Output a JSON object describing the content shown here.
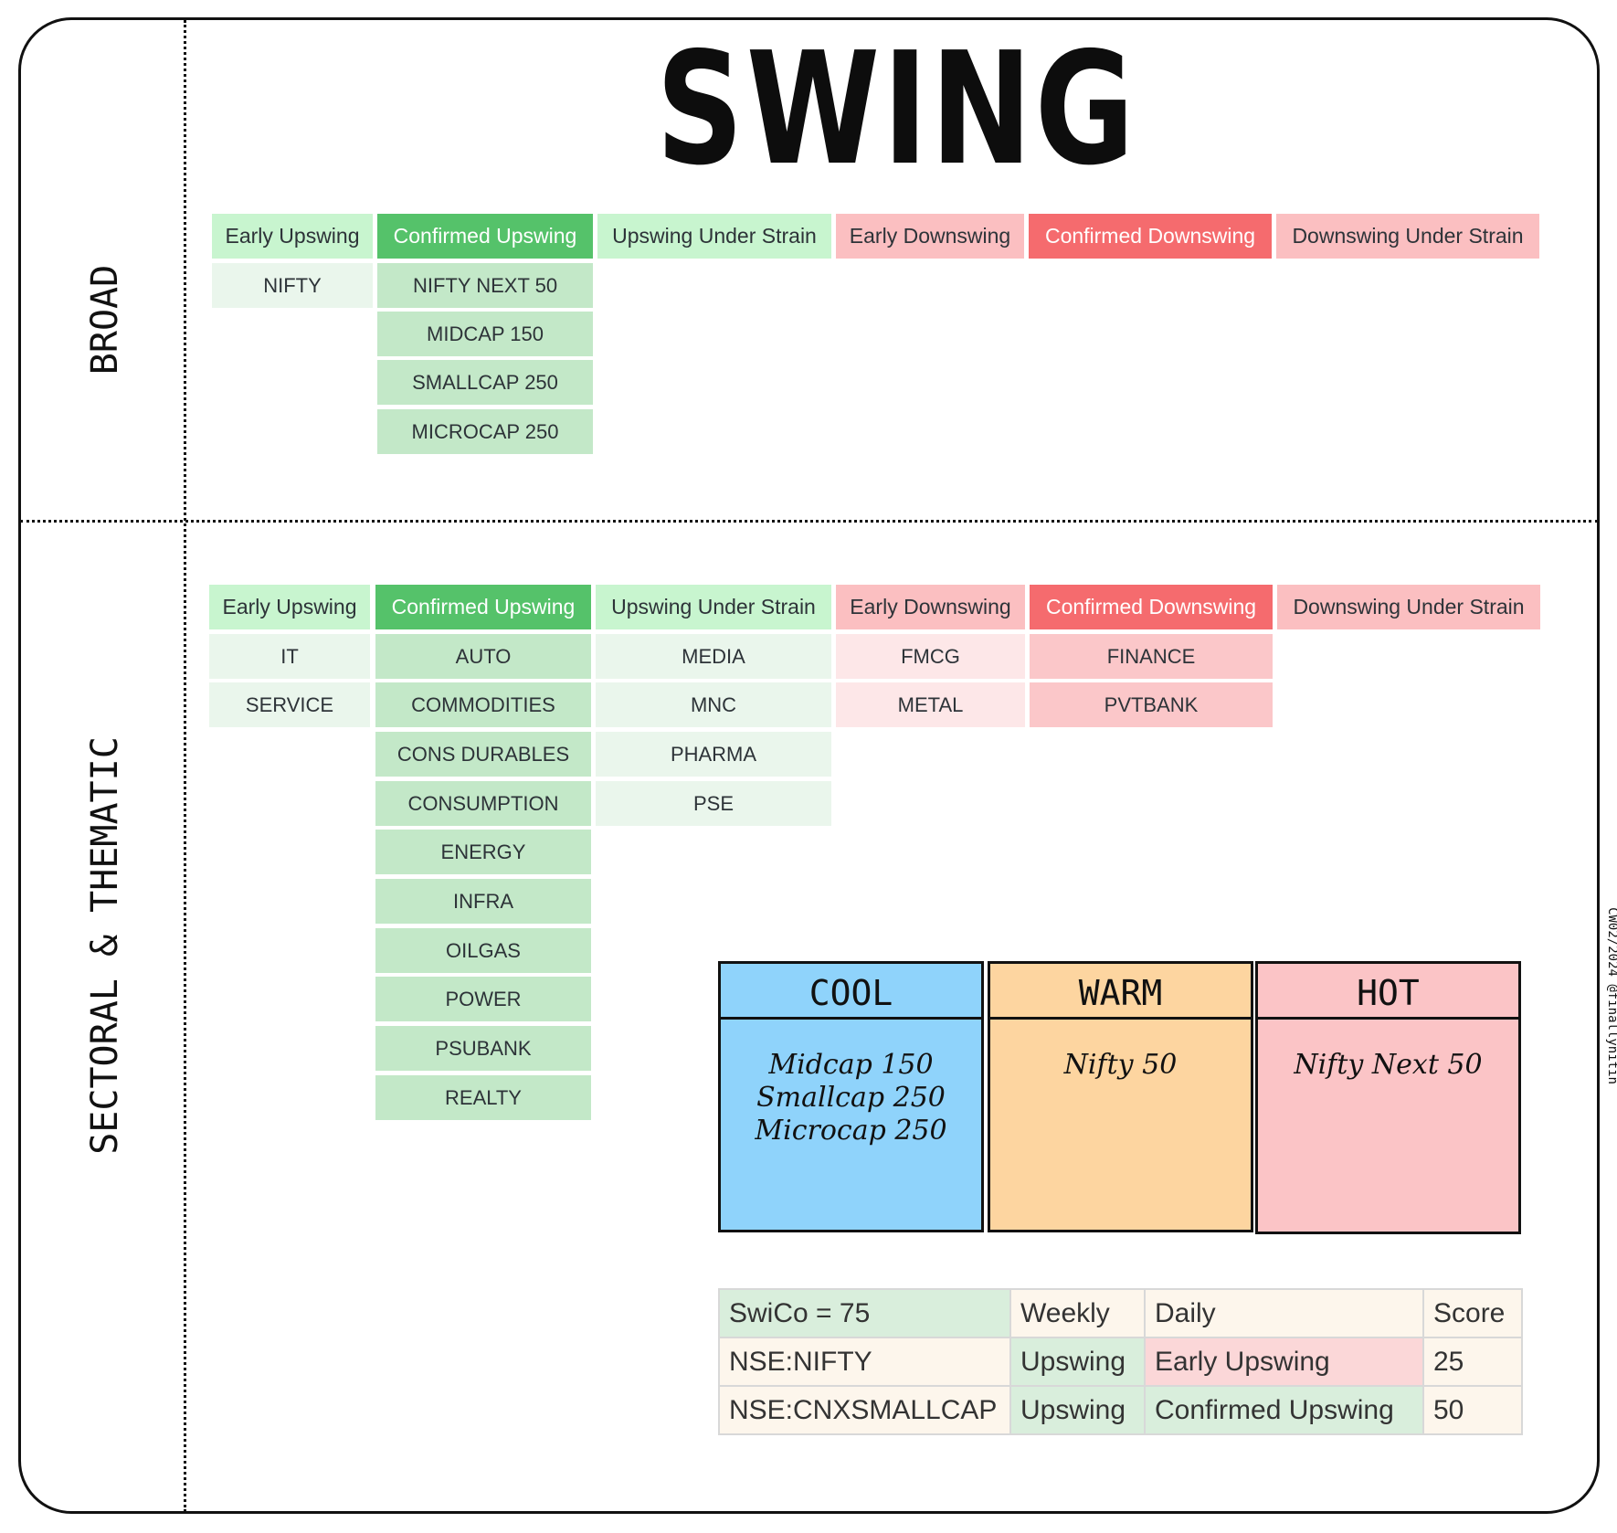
{
  "title": "SWING",
  "side_labels": {
    "broad": "BROAD",
    "sectoral": "SECTORAL & THEMATIC"
  },
  "credit": "CW02/2024 @finallynitin",
  "broad": {
    "headers": [
      "Early Upswing",
      "Confirmed Upswing",
      "Upswing Under Strain",
      "Early Downswing",
      "Confirmed Downswing",
      "Downswing Under Strain"
    ],
    "early_upswing": [
      "NIFTY"
    ],
    "confirmed_upswing": [
      "NIFTY NEXT 50",
      "MIDCAP 150",
      "SMALLCAP 250",
      "MICROCAP 250"
    ]
  },
  "sectoral": {
    "headers": [
      "Early Upswing",
      "Confirmed Upswing",
      "Upswing Under Strain",
      "Early Downswing",
      "Confirmed Downswing",
      "Downswing Under Strain"
    ],
    "early_upswing": [
      "IT",
      "SERVICE"
    ],
    "confirmed_upswing": [
      "AUTO",
      "COMMODITIES",
      "CONS DURABLES",
      "CONSUMPTION",
      "ENERGY",
      "INFRA",
      "OILGAS",
      "POWER",
      "PSUBANK",
      "REALTY"
    ],
    "upswing_under_strain": [
      "MEDIA",
      "MNC",
      "PHARMA",
      "PSE"
    ],
    "early_downswing": [
      "FMCG",
      "METAL"
    ],
    "confirmed_downswing": [
      "FINANCE",
      "PVTBANK"
    ]
  },
  "cards": {
    "cool": {
      "title": "COOL",
      "items": [
        "Midcap 150",
        "Smallcap 250",
        "Microcap 250"
      ],
      "color": "#8fd3fb"
    },
    "warm": {
      "title": "WARM",
      "items": [
        "Nifty 50"
      ],
      "color": "#fdd5a0"
    },
    "hot": {
      "title": "HOT",
      "items": [
        "Nifty Next 50"
      ],
      "color": "#fbc4c6"
    }
  },
  "score_table": {
    "header": [
      "SwiCo = 75",
      "Weekly",
      "Daily",
      "Score"
    ],
    "rows": [
      [
        "NSE:NIFTY",
        "Upswing",
        "Early Upswing",
        "25"
      ],
      [
        "NSE:CNXSMALLCAP",
        "Upswing",
        "Confirmed Upswing",
        "50"
      ]
    ]
  },
  "colors": {
    "confirmed_upswing": "#55c26a",
    "confirmed_downswing": "#f56b6e",
    "light_green": "#c8f5cf",
    "light_red": "#fbbfc1"
  }
}
